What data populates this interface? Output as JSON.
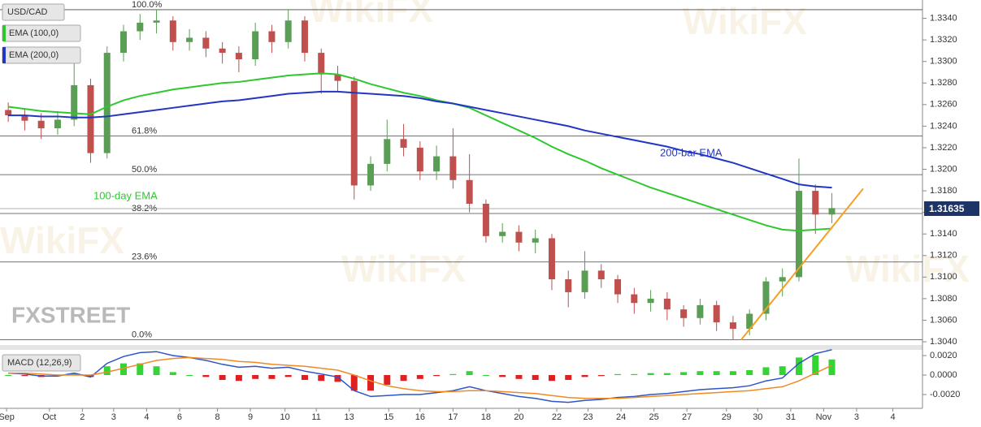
{
  "chart_data": [
    {
      "type": "candlestick",
      "title": "USD/CAD",
      "watermark": "WikiFX",
      "brand": "FXSTREET",
      "xlim": [
        -0.5,
        55.5
      ],
      "xticks": [
        {
          "value": -0.1,
          "label": "Sep"
        },
        {
          "value": 2.5,
          "label": "Oct"
        },
        {
          "value": 4.5,
          "label": "2"
        },
        {
          "value": 6.4,
          "label": "3"
        },
        {
          "value": 8.4,
          "label": "4"
        },
        {
          "value": 10.4,
          "label": "6"
        },
        {
          "value": 12.7,
          "label": "8"
        },
        {
          "value": 14.7,
          "label": "9"
        },
        {
          "value": 16.8,
          "label": "10"
        },
        {
          "value": 18.7,
          "label": "11"
        },
        {
          "value": 20.7,
          "label": "13"
        },
        {
          "value": 23.1,
          "label": "15"
        },
        {
          "value": 25,
          "label": "16"
        },
        {
          "value": 27,
          "label": "17"
        },
        {
          "value": 29,
          "label": "18"
        },
        {
          "value": 31,
          "label": "20"
        },
        {
          "value": 33.3,
          "label": "22"
        },
        {
          "value": 35.2,
          "label": "23"
        },
        {
          "value": 37.2,
          "label": "24"
        },
        {
          "value": 39.2,
          "label": "25"
        },
        {
          "value": 41.2,
          "label": "27"
        },
        {
          "value": 43.6,
          "label": "29"
        },
        {
          "value": 45.5,
          "label": "30"
        },
        {
          "value": 47.5,
          "label": "31"
        },
        {
          "value": 49.5,
          "label": "Nov"
        },
        {
          "value": 51.5,
          "label": "3"
        },
        {
          "value": 53.7,
          "label": "4"
        }
      ],
      "ylim": [
        1.3037,
        1.3357
      ],
      "yticks": [
        {
          "value": 1.304,
          "label": "1.3040"
        },
        {
          "value": 1.306,
          "label": "1.3060"
        },
        {
          "value": 1.308,
          "label": "1.3080"
        },
        {
          "value": 1.31,
          "label": "1.3100"
        },
        {
          "value": 1.312,
          "label": "1.3120"
        },
        {
          "value": 1.314,
          "label": "1.3140"
        },
        {
          "value": 1.316,
          "label": "1.3160"
        },
        {
          "value": 1.318,
          "label": "1.3180"
        },
        {
          "value": 1.32,
          "label": "1.3200"
        },
        {
          "value": 1.322,
          "label": "1.3220"
        },
        {
          "value": 1.324,
          "label": "1.3240"
        },
        {
          "value": 1.326,
          "label": "1.3260"
        },
        {
          "value": 1.328,
          "label": "1.3280"
        },
        {
          "value": 1.33,
          "label": "1.3300"
        },
        {
          "value": 1.332,
          "label": "1.3320"
        },
        {
          "value": 1.334,
          "label": "1.3340"
        }
      ],
      "up_color": "#5a9e55",
      "down_color": "#c0504d",
      "open": [
        1.3255,
        1.325,
        1.3245,
        1.3238,
        1.3246,
        1.3278,
        1.3215,
        1.3308,
        1.3328,
        1.3336,
        1.3338,
        1.3318,
        1.3322,
        1.3312,
        1.3308,
        1.3302,
        1.3328,
        1.3318,
        1.3338,
        1.3308,
        1.3288,
        1.3282,
        1.3185,
        1.3205,
        1.3228,
        1.322,
        1.3198,
        1.3212,
        1.319,
        1.3168,
        1.3138,
        1.3142,
        1.3132,
        1.3136,
        1.3098,
        1.3086,
        1.3106,
        1.3098,
        1.3084,
        1.3076,
        1.308,
        1.307,
        1.3062,
        1.3074,
        1.3058,
        1.3052,
        1.3066,
        1.3096,
        1.31,
        1.318,
        1.3158
      ],
      "high": [
        1.3262,
        1.3256,
        1.3252,
        1.3254,
        1.33,
        1.3284,
        1.3314,
        1.3334,
        1.3344,
        1.3348,
        1.3342,
        1.333,
        1.3328,
        1.3318,
        1.3314,
        1.3336,
        1.3334,
        1.3348,
        1.3342,
        1.3312,
        1.3296,
        1.3286,
        1.3212,
        1.3246,
        1.3242,
        1.3226,
        1.3222,
        1.3238,
        1.3214,
        1.3172,
        1.315,
        1.3148,
        1.3144,
        1.314,
        1.3106,
        1.3124,
        1.3112,
        1.3102,
        1.309,
        1.3088,
        1.3086,
        1.3074,
        1.308,
        1.3078,
        1.3064,
        1.307,
        1.31,
        1.3108,
        1.321,
        1.3186,
        1.3178
      ],
      "low": [
        1.3244,
        1.3236,
        1.3228,
        1.3232,
        1.324,
        1.3206,
        1.321,
        1.33,
        1.332,
        1.3326,
        1.331,
        1.331,
        1.3304,
        1.3298,
        1.329,
        1.3296,
        1.3308,
        1.3312,
        1.33,
        1.327,
        1.3272,
        1.3172,
        1.318,
        1.3198,
        1.3212,
        1.319,
        1.319,
        1.3182,
        1.316,
        1.3132,
        1.3132,
        1.3124,
        1.3122,
        1.3088,
        1.3072,
        1.308,
        1.309,
        1.3076,
        1.3066,
        1.3068,
        1.306,
        1.3054,
        1.3056,
        1.305,
        1.3042,
        1.3046,
        1.306,
        1.3082,
        1.3096,
        1.314,
        1.315
      ],
      "close": [
        1.325,
        1.3245,
        1.3238,
        1.3246,
        1.3278,
        1.3215,
        1.3308,
        1.3328,
        1.3336,
        1.3338,
        1.3318,
        1.3322,
        1.3312,
        1.3308,
        1.3302,
        1.3328,
        1.3318,
        1.3338,
        1.3308,
        1.3288,
        1.3282,
        1.3185,
        1.3205,
        1.3228,
        1.322,
        1.3198,
        1.3212,
        1.319,
        1.3168,
        1.3138,
        1.3142,
        1.3132,
        1.3136,
        1.3098,
        1.3086,
        1.3106,
        1.3098,
        1.3084,
        1.3076,
        1.308,
        1.307,
        1.3062,
        1.3074,
        1.3058,
        1.3052,
        1.3066,
        1.3096,
        1.31,
        1.318,
        1.3158,
        1.3164
      ],
      "current_price": 1.31635,
      "series": [
        {
          "name": "EMA (100,0)",
          "color": "#2ec82e",
          "values": [
            1.3258,
            1.3256,
            1.3254,
            1.3253,
            1.3252,
            1.3251,
            1.3258,
            1.3264,
            1.3268,
            1.3271,
            1.3274,
            1.3276,
            1.3278,
            1.328,
            1.3281,
            1.3283,
            1.3285,
            1.3287,
            1.3288,
            1.3289,
            1.3288,
            1.3284,
            1.3279,
            1.3275,
            1.3271,
            1.3268,
            1.3264,
            1.3261,
            1.3257,
            1.325,
            1.3243,
            1.3236,
            1.3229,
            1.3221,
            1.3214,
            1.3208,
            1.3201,
            1.3195,
            1.3189,
            1.3183,
            1.3178,
            1.3173,
            1.3168,
            1.3163,
            1.3158,
            1.3153,
            1.3148,
            1.3144,
            1.3143,
            1.3144,
            1.3145
          ]
        },
        {
          "name": "EMA (200,0)",
          "color": "#2236c4",
          "values": [
            1.325,
            1.325,
            1.3249,
            1.3249,
            1.3248,
            1.3248,
            1.3249,
            1.3251,
            1.3253,
            1.3255,
            1.3257,
            1.3259,
            1.3261,
            1.3263,
            1.3264,
            1.3266,
            1.3268,
            1.327,
            1.3271,
            1.3272,
            1.3272,
            1.3271,
            1.327,
            1.3269,
            1.3268,
            1.3266,
            1.3263,
            1.3261,
            1.3258,
            1.3255,
            1.3252,
            1.3249,
            1.3246,
            1.3243,
            1.324,
            1.3236,
            1.3233,
            1.323,
            1.3227,
            1.3224,
            1.3221,
            1.3217,
            1.3214,
            1.321,
            1.3206,
            1.3201,
            1.3196,
            1.3191,
            1.3186,
            1.3184,
            1.3183
          ]
        }
      ],
      "trendline": {
        "color": "#f5a023",
        "x": [
          44.5,
          51.9
        ],
        "values": [
          1.3042,
          1.3182
        ]
      },
      "fib_levels": [
        {
          "value": 1.3348,
          "label": "100.0%"
        },
        {
          "value": 1.3231,
          "label": "61.8%"
        },
        {
          "value": 1.3195,
          "label": "50.0%"
        },
        {
          "value": 1.3159,
          "label": "38.2%"
        },
        {
          "value": 1.3114,
          "label": "23.6%"
        },
        {
          "value": 1.3042,
          "label": "0.0%"
        }
      ],
      "annotations": [
        "200-bar EMA",
        "100-day EMA"
      ]
    },
    {
      "type": "macd",
      "title": "MACD (12,26,9)",
      "ylim": [
        -0.0032,
        0.0025
      ],
      "yticks": [
        {
          "value": 0.002,
          "label": "0.0020"
        },
        {
          "value": 0,
          "label": "0.0000"
        },
        {
          "value": -0.002,
          "label": "-0.0020"
        }
      ],
      "histogram_colors": [
        "#33d433",
        "#e02020"
      ],
      "histogram": [
        0.0,
        -0.0001,
        -0.0002,
        -0.0001,
        0.0002,
        -0.0002,
        0.0009,
        0.0012,
        0.0012,
        0.0009,
        0.0003,
        0.0,
        -0.0002,
        -0.0005,
        -0.0006,
        -0.0004,
        -0.0004,
        -0.0002,
        -0.0005,
        -0.0006,
        -0.0007,
        -0.0016,
        -0.0016,
        -0.001,
        -0.0006,
        -0.0004,
        -0.0001,
        0.0001,
        0.0004,
        0.0,
        -0.0002,
        -0.0004,
        -0.0005,
        -0.0006,
        -0.0005,
        -0.0002,
        -0.0001,
        0.0001,
        0.0001,
        0.0002,
        0.0002,
        0.0003,
        0.0004,
        0.0004,
        0.0004,
        0.0005,
        0.0008,
        0.0009,
        0.0018,
        0.002,
        0.0016
      ],
      "series": [
        {
          "color": "#2d55c8",
          "values": [
            0.0002,
            0.0001,
            -0.0001,
            -0.0001,
            0.0002,
            -0.0002,
            0.0012,
            0.0019,
            0.0023,
            0.0024,
            0.002,
            0.0018,
            0.0015,
            0.0011,
            0.0008,
            0.0009,
            0.0007,
            0.0008,
            0.0004,
            0.0001,
            -0.0002,
            -0.0016,
            -0.0022,
            -0.0021,
            -0.002,
            -0.002,
            -0.0018,
            -0.0016,
            -0.0012,
            -0.0016,
            -0.0019,
            -0.0022,
            -0.0024,
            -0.0027,
            -0.0028,
            -0.0026,
            -0.0025,
            -0.0023,
            -0.0022,
            -0.002,
            -0.0019,
            -0.0017,
            -0.0015,
            -0.0014,
            -0.0013,
            -0.0011,
            -0.0006,
            -0.0003,
            0.0012,
            0.0022,
            0.0026
          ]
        },
        {
          "color": "#f08a24",
          "values": [
            0.0002,
            0.0002,
            0.0001,
            0.0,
            0.0,
            0.0,
            0.0003,
            0.0007,
            0.0011,
            0.0015,
            0.0017,
            0.0018,
            0.0017,
            0.0016,
            0.0014,
            0.0013,
            0.0011,
            0.001,
            0.0009,
            0.0007,
            0.0005,
            0.0,
            -0.0006,
            -0.0011,
            -0.0014,
            -0.0016,
            -0.0017,
            -0.0017,
            -0.0016,
            -0.0016,
            -0.0017,
            -0.0018,
            -0.0019,
            -0.0021,
            -0.0023,
            -0.0024,
            -0.0024,
            -0.0024,
            -0.0023,
            -0.0022,
            -0.0021,
            -0.002,
            -0.0019,
            -0.0018,
            -0.0017,
            -0.0016,
            -0.0014,
            -0.0012,
            -0.0006,
            0.0002,
            0.001
          ]
        }
      ]
    }
  ]
}
